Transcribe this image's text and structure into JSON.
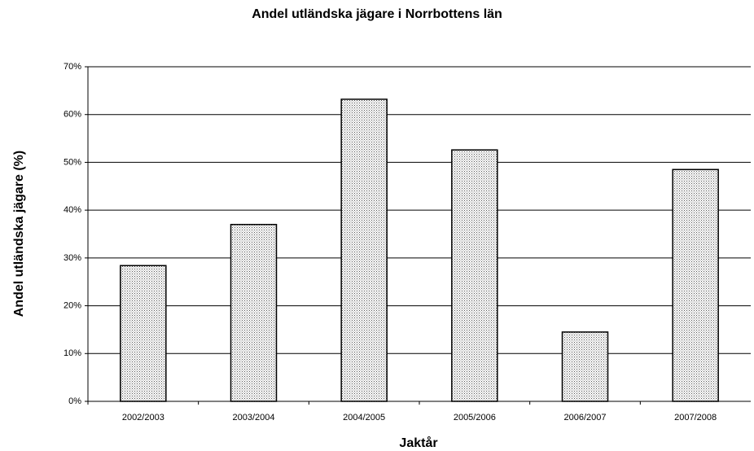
{
  "chart_data": {
    "type": "bar",
    "title": "Andel utländska jägare i Norrbottens län",
    "x_label": "Jaktår",
    "y_label": "Andel utländska jägare (%)",
    "categories": [
      "2002/2003",
      "2003/2004",
      "2004/2005",
      "2005/2006",
      "2006/2007",
      "2007/2008"
    ],
    "values": [
      28.4,
      37.0,
      63.2,
      52.6,
      14.5,
      48.5
    ],
    "ylim": [
      0,
      70
    ],
    "yticks": [
      {
        "value": 0,
        "label": "0%"
      },
      {
        "value": 10,
        "label": "10%"
      },
      {
        "value": 20,
        "label": "20%"
      },
      {
        "value": 30,
        "label": "30%"
      },
      {
        "value": 40,
        "label": "40%"
      },
      {
        "value": 50,
        "label": "50%"
      },
      {
        "value": 60,
        "label": "60%"
      },
      {
        "value": 70,
        "label": "70%"
      }
    ],
    "grid": true
  }
}
